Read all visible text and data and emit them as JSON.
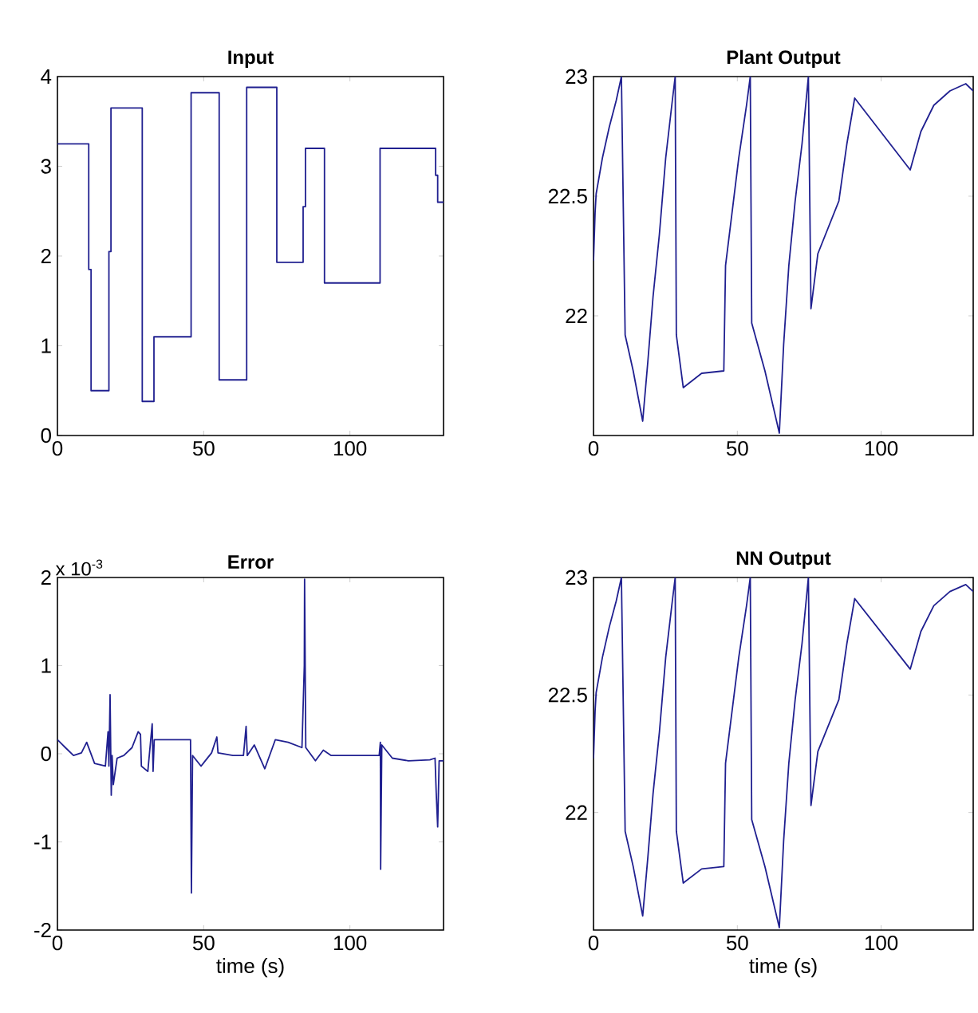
{
  "chart_data": [
    {
      "type": "step",
      "title": "Input",
      "xlim": [
        0,
        132
      ],
      "ylim": [
        0,
        4
      ],
      "xticks": [
        0,
        50,
        100
      ],
      "yticks": [
        0,
        1,
        2,
        3,
        4
      ],
      "series": [
        {
          "color": "#202090",
          "x": [
            0,
            10.7,
            11.5,
            17.6,
            18.3,
            29,
            33,
            45.7,
            55.3,
            64.7,
            75,
            84,
            84.8,
            91.3,
            110.3,
            129.3,
            130,
            132
          ],
          "values": [
            3.25,
            1.85,
            0.5,
            2.05,
            3.65,
            0.38,
            1.1,
            3.82,
            0.62,
            3.88,
            1.93,
            2.55,
            3.2,
            1.7,
            3.2,
            2.9,
            2.6,
            2.6
          ]
        }
      ]
    },
    {
      "type": "line",
      "title": "Plant Output",
      "xlim": [
        0,
        132
      ],
      "ylim": [
        21.5,
        23
      ],
      "xticks": [
        0,
        50,
        100
      ],
      "yticks": [
        22,
        22.5,
        23
      ],
      "series": [
        {
          "color": "#202090",
          "x": [
            0,
            0.55,
            0.92,
            3.1,
            5.5,
            7.9,
            9.7,
            11.0,
            13.8,
            17.1,
            18.9,
            20.7,
            22.9,
            25.1,
            27.5,
            28.4,
            28.8,
            31.2,
            37.6,
            45.3,
            45.9,
            50.5,
            53.2,
            54.5,
            55.0,
            59.6,
            64.6,
            66.1,
            67.9,
            70.1,
            72.5,
            74.7,
            75.6,
            78.0,
            85.3,
            88.1,
            90.8,
            110.1,
            113.8,
            118.3,
            123.9,
            129.4,
            132
          ],
          "values": [
            22.23,
            22.43,
            22.51,
            22.66,
            22.79,
            22.9,
            23,
            21.92,
            21.77,
            21.56,
            21.81,
            22.08,
            22.34,
            22.66,
            22.91,
            23,
            21.92,
            21.7,
            21.76,
            21.77,
            22.21,
            22.66,
            22.88,
            23,
            21.97,
            21.77,
            21.51,
            21.88,
            22.21,
            22.48,
            22.72,
            23,
            22.03,
            22.26,
            22.48,
            22.72,
            22.91,
            22.61,
            22.77,
            22.88,
            22.94,
            22.97,
            22.94
          ]
        }
      ]
    },
    {
      "type": "line",
      "title": "Error",
      "xlabel": "time (s)",
      "annotations": [
        "x 10$^{-3}$"
      ],
      "xlim": [
        0,
        132
      ],
      "ylim": [
        -2,
        2
      ],
      "xticks": [
        0,
        50,
        100
      ],
      "yticks": [
        -2,
        -1,
        0,
        1,
        2
      ],
      "series": [
        {
          "color": "#202090",
          "x": [
            0,
            2.7,
            5.5,
            8.2,
            10,
            12.7,
            16.4,
            17.3,
            17.6,
            18,
            18.4,
            18.7,
            19.1,
            20.4,
            22.7,
            25.5,
            27.6,
            28.4,
            28.7,
            30.9,
            32.4,
            32.7,
            33.1,
            45.5,
            45.8,
            46.2,
            49.1,
            52.7,
            54.5,
            54.9,
            60,
            63.6,
            64.5,
            64.9,
            67.3,
            70.9,
            74.5,
            78.9,
            83.6,
            84.4,
            84.5,
            84.9,
            88.2,
            90.9,
            93.6,
            98.2,
            110,
            110.4,
            110.5,
            110.9,
            114.5,
            120,
            127.3,
            129.1,
            129.5,
            130,
            130.5,
            132
          ],
          "values": [
            0.16,
            0.07,
            -0.02,
            0.01,
            0.13,
            -0.11,
            -0.14,
            0.25,
            -0.14,
            0.67,
            -0.47,
            -0.02,
            -0.35,
            -0.05,
            -0.02,
            0.07,
            0.25,
            0.22,
            -0.14,
            -0.2,
            0.34,
            -0.2,
            0.16,
            0.16,
            -1.58,
            -0.02,
            -0.14,
            0.01,
            0.19,
            0.01,
            -0.02,
            -0.02,
            0.31,
            -0.02,
            0.1,
            -0.17,
            0.16,
            0.13,
            0.07,
            1.0,
            1.98,
            0.07,
            -0.08,
            0.04,
            -0.02,
            -0.02,
            -0.02,
            0.13,
            -1.31,
            0.1,
            -0.05,
            -0.08,
            -0.07,
            -0.05,
            -0.44,
            -0.83,
            -0.08,
            -0.08
          ]
        }
      ]
    },
    {
      "type": "line",
      "title": "NN Output",
      "xlabel": "time (s)",
      "xlim": [
        0,
        132
      ],
      "ylim": [
        21.5,
        23
      ],
      "xticks": [
        0,
        50,
        100
      ],
      "yticks": [
        22,
        22.5,
        23
      ],
      "series": [
        {
          "color": "#202090",
          "x": [
            0,
            0.55,
            0.92,
            3.1,
            5.5,
            7.9,
            9.7,
            11.0,
            13.8,
            17.1,
            18.9,
            20.7,
            22.9,
            25.1,
            27.5,
            28.4,
            28.8,
            31.2,
            37.6,
            45.3,
            45.9,
            50.5,
            53.2,
            54.5,
            55.0,
            59.6,
            64.6,
            66.1,
            67.9,
            70.1,
            72.5,
            74.7,
            75.6,
            78.0,
            85.3,
            88.1,
            90.8,
            110.1,
            113.8,
            118.3,
            123.9,
            129.4,
            132
          ],
          "values": [
            22.23,
            22.43,
            22.51,
            22.66,
            22.79,
            22.9,
            23,
            21.92,
            21.77,
            21.56,
            21.81,
            22.08,
            22.34,
            22.66,
            22.91,
            23,
            21.92,
            21.7,
            21.76,
            21.77,
            22.21,
            22.66,
            22.88,
            23,
            21.97,
            21.77,
            21.51,
            21.88,
            22.21,
            22.48,
            22.72,
            23,
            22.03,
            22.26,
            22.48,
            22.72,
            22.91,
            22.61,
            22.77,
            22.88,
            22.94,
            22.97,
            22.94
          ]
        }
      ]
    }
  ]
}
